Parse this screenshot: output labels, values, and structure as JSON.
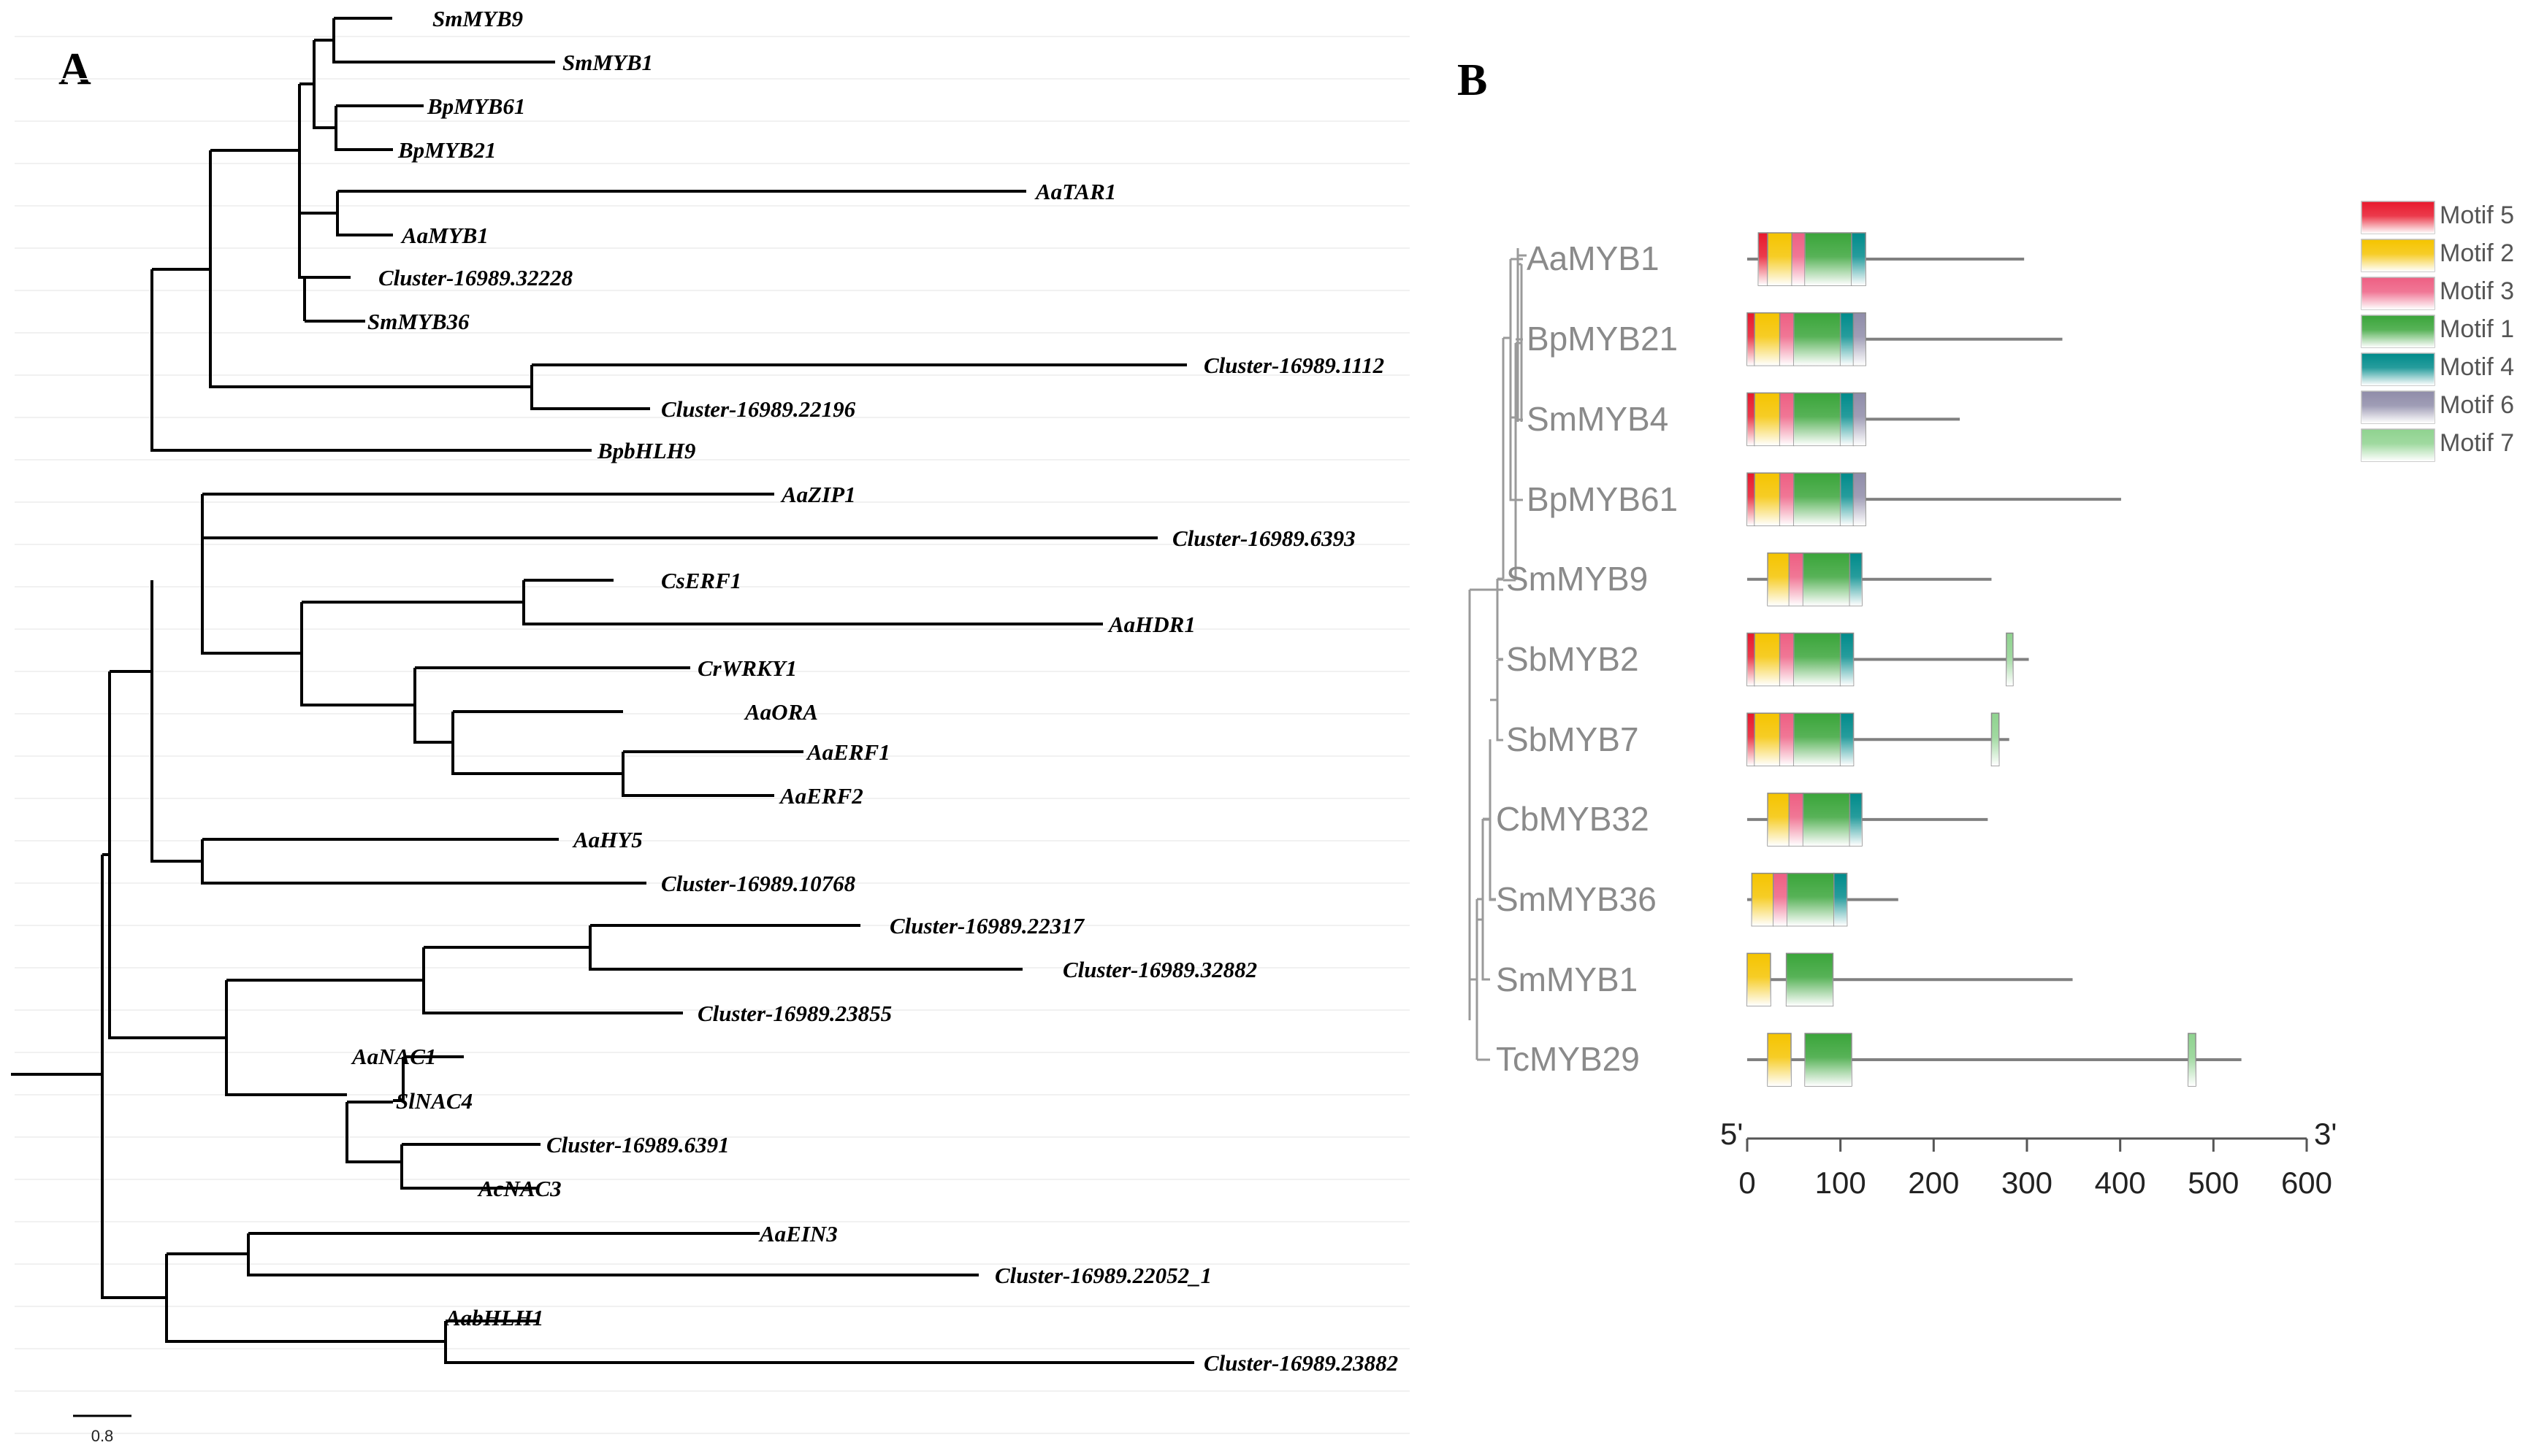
{
  "panelA": {
    "letter": "A",
    "scale": {
      "value": 0.8,
      "label": "0.8"
    },
    "leaves": [
      "SmMYB9",
      "SmMYB1",
      "BpMYB61",
      "BpMYB21",
      "AaTAR1",
      "AaMYB1",
      "Cluster-16989.32228",
      "SmMYB36",
      "Cluster-16989.1112",
      "Cluster-16989.22196",
      "BpbHLH9",
      "AaZIP1",
      "Cluster-16989.6393",
      "CsERF1",
      "AaHDR1",
      "CrWRKY1",
      "AaORA",
      "AaERF1",
      "AaERF2",
      "AaHY5",
      "Cluster-16989.10768",
      "Cluster-16989.22317",
      "Cluster-16989.32882",
      "Cluster-16989.23855",
      "AaNAC1",
      "SlNAC4",
      "Cluster-16989.6391",
      "AcNAC3",
      "AaEIN3",
      "Cluster-16989.22052_1",
      "AabHLH1",
      "Cluster-16989.23882"
    ]
  },
  "panelB": {
    "letter": "B",
    "proteins": [
      {
        "name": "AaMYB1",
        "length": 297,
        "motifs": [
          [
            "Motif 5",
            12,
            22
          ],
          [
            "Motif 2",
            22,
            48
          ],
          [
            "Motif 3",
            48,
            62
          ],
          [
            "Motif 1",
            62,
            112
          ],
          [
            "Motif 4",
            112,
            127
          ]
        ]
      },
      {
        "name": "BpMYB21",
        "length": 338,
        "motifs": [
          [
            "Motif 5",
            0,
            8
          ],
          [
            "Motif 2",
            8,
            35
          ],
          [
            "Motif 3",
            35,
            50
          ],
          [
            "Motif 1",
            50,
            100
          ],
          [
            "Motif 4",
            100,
            114
          ],
          [
            "Motif 6",
            114,
            127
          ]
        ]
      },
      {
        "name": "SmMYB4",
        "length": 228,
        "motifs": [
          [
            "Motif 5",
            0,
            8
          ],
          [
            "Motif 2",
            8,
            35
          ],
          [
            "Motif 3",
            35,
            50
          ],
          [
            "Motif 1",
            50,
            100
          ],
          [
            "Motif 4",
            100,
            114
          ],
          [
            "Motif 6",
            114,
            127
          ]
        ]
      },
      {
        "name": "BpMYB61",
        "length": 401,
        "motifs": [
          [
            "Motif 5",
            0,
            8
          ],
          [
            "Motif 2",
            8,
            35
          ],
          [
            "Motif 3",
            35,
            50
          ],
          [
            "Motif 1",
            50,
            100
          ],
          [
            "Motif 4",
            100,
            114
          ],
          [
            "Motif 6",
            114,
            127
          ]
        ]
      },
      {
        "name": "SmMYB9",
        "length": 262,
        "motifs": [
          [
            "Motif 2",
            22,
            45
          ],
          [
            "Motif 3",
            45,
            60
          ],
          [
            "Motif 1",
            60,
            110
          ],
          [
            "Motif 4",
            110,
            123
          ]
        ]
      },
      {
        "name": "SbMYB2",
        "length": 302,
        "motifs": [
          [
            "Motif 5",
            0,
            8
          ],
          [
            "Motif 2",
            8,
            35
          ],
          [
            "Motif 3",
            35,
            50
          ],
          [
            "Motif 1",
            50,
            100
          ],
          [
            "Motif 4",
            100,
            114
          ],
          [
            "Motif 7",
            278,
            285
          ]
        ]
      },
      {
        "name": "SbMYB7",
        "length": 281,
        "motifs": [
          [
            "Motif 5",
            0,
            8
          ],
          [
            "Motif 2",
            8,
            35
          ],
          [
            "Motif 3",
            35,
            50
          ],
          [
            "Motif 1",
            50,
            100
          ],
          [
            "Motif 4",
            100,
            114
          ],
          [
            "Motif 7",
            262,
            270
          ]
        ]
      },
      {
        "name": "CbMYB32",
        "length": 258,
        "motifs": [
          [
            "Motif 2",
            22,
            45
          ],
          [
            "Motif 3",
            45,
            60
          ],
          [
            "Motif 1",
            60,
            110
          ],
          [
            "Motif 4",
            110,
            123
          ]
        ]
      },
      {
        "name": "SmMYB36",
        "length": 162,
        "motifs": [
          [
            "Motif 2",
            5,
            28
          ],
          [
            "Motif 3",
            28,
            43
          ],
          [
            "Motif 1",
            43,
            93
          ],
          [
            "Motif 4",
            93,
            107
          ]
        ]
      },
      {
        "name": "SmMYB1",
        "length": 349,
        "motifs": [
          [
            "Motif 2",
            0,
            25
          ],
          [
            "Motif 1",
            42,
            92
          ]
        ]
      },
      {
        "name": "TcMYB29",
        "length": 530,
        "motifs": [
          [
            "Motif 2",
            22,
            47
          ],
          [
            "Motif 1",
            62,
            112
          ],
          [
            "Motif 7",
            473,
            481
          ]
        ]
      }
    ],
    "legend": [
      {
        "label": "Motif 5",
        "color": "#e8182c"
      },
      {
        "label": "Motif 2",
        "color": "#f5c400"
      },
      {
        "label": "Motif 3",
        "color": "#ee5f83"
      },
      {
        "label": "Motif 1",
        "color": "#3aa53a"
      },
      {
        "label": "Motif 4",
        "color": "#008b8b"
      },
      {
        "label": "Motif 6",
        "color": "#8f8ca9"
      },
      {
        "label": "Motif 7",
        "color": "#8fd38f"
      }
    ],
    "axis": {
      "min": 0,
      "max": 600,
      "ticks": [
        "0",
        "100",
        "200",
        "300",
        "400",
        "500",
        "600"
      ],
      "left_label": "5'",
      "right_label": "3'"
    }
  }
}
